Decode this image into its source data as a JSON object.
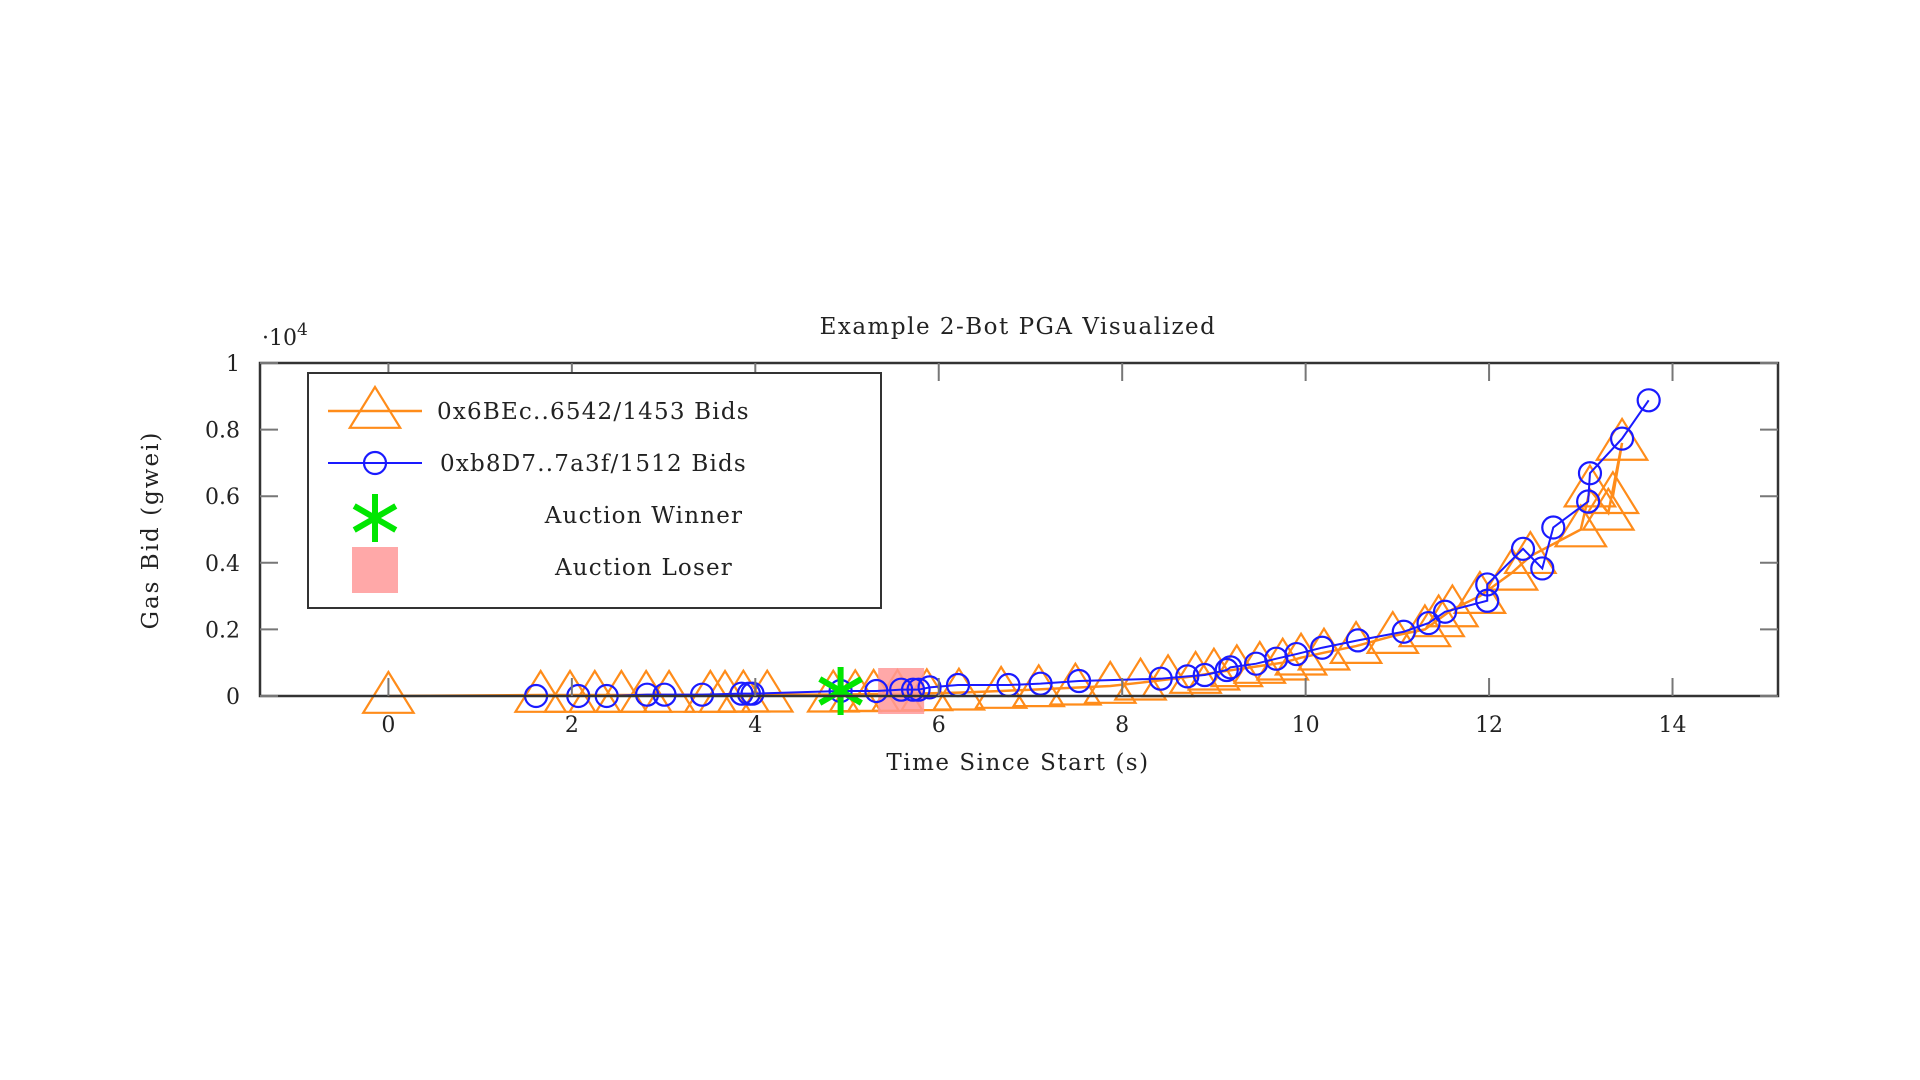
{
  "chart_data": {
    "type": "scatter",
    "title": "Example 2-Bot PGA Visualized",
    "xlabel": "Time Since Start (s)",
    "ylabel": "Gas Bid (gwei)",
    "y_multiplier": "·10",
    "y_multiplier_exp": "4",
    "xlim": [
      -1.4,
      15.15
    ],
    "ylim": [
      0,
      1
    ],
    "xticks": [
      0,
      2,
      4,
      6,
      8,
      10,
      12,
      14
    ],
    "xtick_labels": [
      "0",
      "2",
      "4",
      "6",
      "8",
      "10",
      "12",
      "14"
    ],
    "yticks": [
      0,
      0.2,
      0.4,
      0.6,
      0.8,
      1
    ],
    "ytick_labels": [
      "0",
      "0.2",
      "0.4",
      "0.6",
      "0.8",
      "1"
    ],
    "grid": false,
    "legend_position": "top-left",
    "series": [
      {
        "name": "0x6BEc..6542/1453 Bids",
        "color": "#ff8c1a",
        "marker": "triangle",
        "x": [
          0,
          1.66,
          1.98,
          2.25,
          2.54,
          2.81,
          3.06,
          3.51,
          3.67,
          3.87,
          4.13,
          4.85,
          5.09,
          5.29,
          5.55,
          5.87,
          6.22,
          6.68,
          7.09,
          7.49,
          7.87,
          8.2,
          8.5,
          8.8,
          9.0,
          9.25,
          9.5,
          9.75,
          9.95,
          10.2,
          10.55,
          10.95,
          11.3,
          11.45,
          11.6,
          11.9,
          12.25,
          12.45,
          13.0,
          13.1,
          13.3,
          13.45,
          13.35
        ],
        "y": [
          0,
          0.003,
          0.003,
          0.003,
          0.003,
          0.003,
          0.003,
          0.003,
          0.003,
          0.004,
          0.004,
          0.004,
          0.005,
          0.006,
          0.006,
          0.008,
          0.01,
          0.015,
          0.02,
          0.025,
          0.03,
          0.04,
          0.05,
          0.06,
          0.07,
          0.08,
          0.09,
          0.1,
          0.115,
          0.13,
          0.15,
          0.18,
          0.2,
          0.23,
          0.26,
          0.3,
          0.37,
          0.42,
          0.5,
          0.62,
          0.55,
          0.76,
          0.6
        ]
      },
      {
        "name": "0xb8D7..7a3f/1512 Bids",
        "color": "#1a1aff",
        "marker": "circle",
        "x": [
          1.61,
          2.07,
          2.38,
          2.82,
          3.01,
          3.42,
          3.85,
          3.93,
          3.97,
          4.93,
          5.32,
          5.59,
          5.72,
          5.78,
          5.9,
          6.21,
          6.76,
          7.11,
          7.53,
          8.42,
          8.71,
          8.9,
          9.14,
          9.18,
          9.46,
          9.68,
          9.9,
          10.18,
          10.57,
          11.07,
          11.34,
          11.52,
          11.98,
          11.98,
          12.37,
          12.58,
          12.7,
          13.08,
          13.1,
          13.45,
          13.74
        ],
        "y": [
          0,
          0,
          0,
          0.004,
          0.004,
          0.004,
          0.007,
          0.007,
          0.007,
          0.015,
          0.015,
          0.019,
          0.019,
          0.019,
          0.026,
          0.033,
          0.033,
          0.037,
          0.045,
          0.052,
          0.059,
          0.063,
          0.078,
          0.086,
          0.097,
          0.112,
          0.126,
          0.145,
          0.167,
          0.193,
          0.219,
          0.253,
          0.286,
          0.335,
          0.442,
          0.383,
          0.506,
          0.584,
          0.669,
          0.773,
          0.888
        ]
      }
    ],
    "annotations": [
      {
        "name": "Auction Winner",
        "marker": "star",
        "color": "#00e600",
        "x": 4.93,
        "y": 0.015
      },
      {
        "name": "Auction Loser",
        "marker": "square",
        "color": "#ff9999",
        "x": 5.59,
        "y": 0.015
      }
    ]
  }
}
